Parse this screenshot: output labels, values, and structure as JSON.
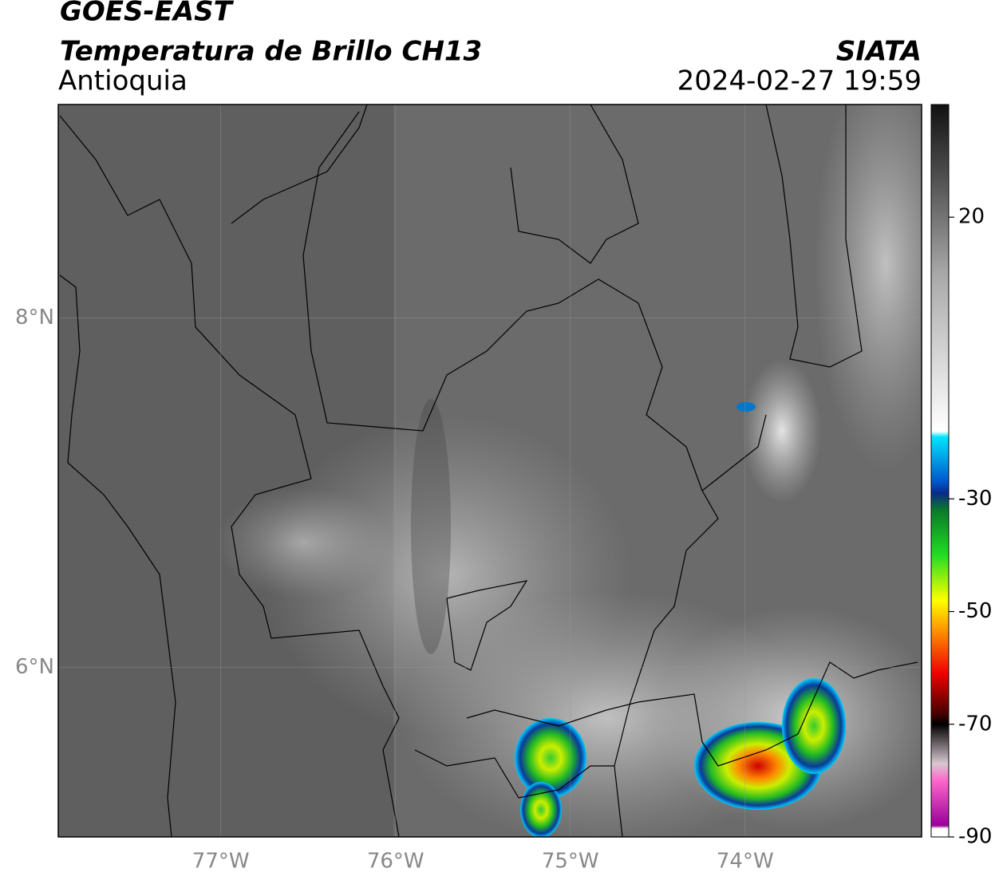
{
  "header": {
    "satellite": "GOES-EAST",
    "product": "Temperatura de Brillo CH13",
    "region": "Antioquia",
    "source": "SIATA",
    "datetime": "2024-02-27 19:59"
  },
  "map": {
    "lon_range": [
      -77.93,
      -72.99
    ],
    "lat_range": [
      5.03,
      9.22
    ],
    "lon_ticks": [
      {
        "value": -77,
        "label": "77°W"
      },
      {
        "value": -76,
        "label": "76°W"
      },
      {
        "value": -75,
        "label": "75°W"
      },
      {
        "value": -74,
        "label": "74°W"
      }
    ],
    "lat_ticks": [
      {
        "value": 8,
        "label": "8°N"
      },
      {
        "value": 6,
        "label": "6°N"
      }
    ]
  },
  "colorbar": {
    "range": [
      -90,
      40
    ],
    "ticks": [
      20,
      -30,
      -50,
      -70,
      -90
    ],
    "stops": [
      [
        40,
        "#111111"
      ],
      [
        25,
        "#5a5a5a"
      ],
      [
        10,
        "#a8a8a8"
      ],
      [
        -18,
        "#ffffff"
      ],
      [
        -19,
        "#00e5ff"
      ],
      [
        -27,
        "#0055cc"
      ],
      [
        -29,
        "#0a2a88"
      ],
      [
        -32,
        "#0a7a2a"
      ],
      [
        -40,
        "#22dd22"
      ],
      [
        -48,
        "#ffff00"
      ],
      [
        -53,
        "#ff9900"
      ],
      [
        -61,
        "#ee0000"
      ],
      [
        -68,
        "#4a0000"
      ],
      [
        -70,
        "#000000"
      ],
      [
        -77,
        "#d8c8d0"
      ],
      [
        -80,
        "#ff66cc"
      ],
      [
        -88,
        "#990099"
      ],
      [
        -88.5,
        "#ffffff"
      ],
      [
        -90,
        "#ffffff"
      ]
    ]
  }
}
